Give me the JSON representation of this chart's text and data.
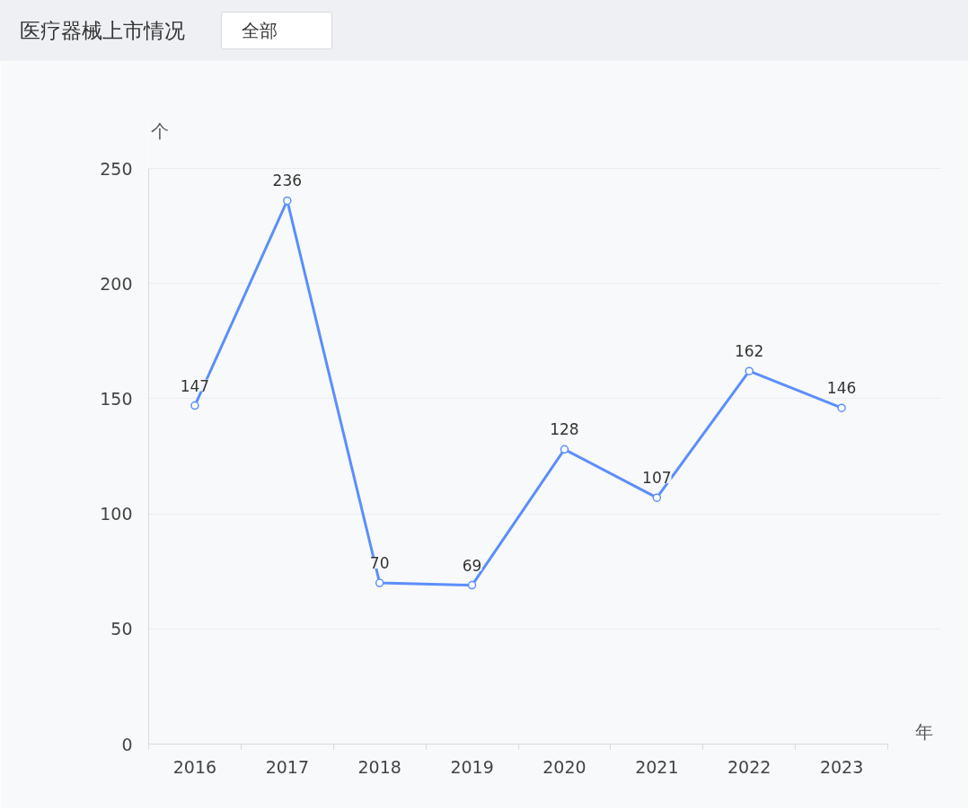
{
  "chart_data": {
    "type": "line",
    "title": "医疗器械上市情况",
    "annotations": [
      "全部"
    ],
    "xlabel": "年",
    "ylabel": "个",
    "categories": [
      "2016",
      "2017",
      "2018",
      "2019",
      "2020",
      "2021",
      "2022",
      "2023"
    ],
    "series": [
      {
        "color": "#5b8ff9",
        "values": [
          147,
          236,
          70,
          69,
          128,
          107,
          162,
          146
        ]
      }
    ],
    "ylim": [
      0,
      250
    ],
    "yticks": [
      0,
      50,
      100,
      150,
      200,
      250
    ],
    "grid": "y",
    "marker": "circle",
    "line_style": "solid",
    "data_labels": true
  }
}
